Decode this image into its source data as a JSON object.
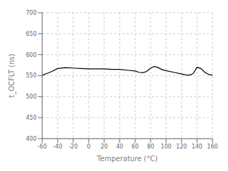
{
  "chart_data": {
    "type": "line",
    "title": "",
    "xlabel": "Temperature (°C)",
    "ylabel": "t_OCFLT (ns)",
    "xlim": [
      -60,
      160
    ],
    "ylim": [
      400,
      700
    ],
    "xticks": [
      -60,
      -40,
      -20,
      0,
      20,
      40,
      60,
      80,
      100,
      120,
      140,
      160
    ],
    "yticks": [
      400,
      450,
      500,
      550,
      600,
      650,
      700
    ],
    "x": [
      -60,
      -50,
      -40,
      -30,
      -20,
      -10,
      0,
      10,
      20,
      30,
      40,
      50,
      60,
      65,
      70,
      75,
      80,
      85,
      90,
      95,
      100,
      110,
      120,
      125,
      130,
      135,
      140,
      145,
      150,
      155,
      160
    ],
    "values": [
      551,
      558,
      567,
      569,
      568,
      567,
      566,
      566,
      566,
      565,
      565,
      563,
      561,
      558,
      557,
      560,
      568,
      572,
      569,
      564,
      562,
      558,
      554,
      552,
      551,
      555,
      570,
      567,
      558,
      553,
      551
    ],
    "color": "#000000",
    "grid": true
  }
}
